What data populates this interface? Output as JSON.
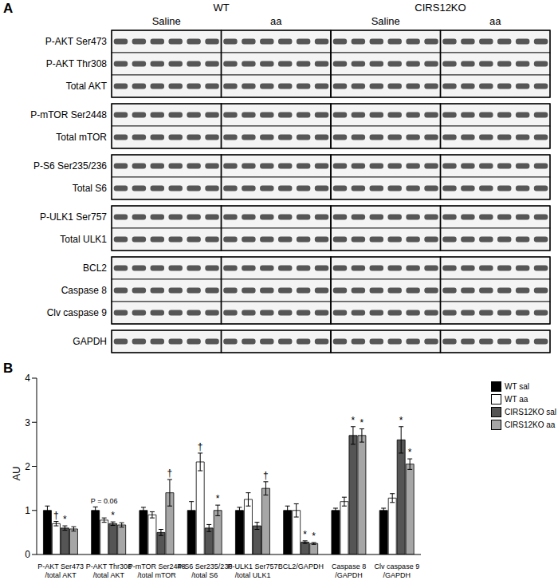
{
  "panel_a": {
    "label": "A",
    "groups": [
      {
        "name": "WT",
        "conditions": [
          "Saline",
          "aa"
        ]
      },
      {
        "name": "CIRS12KO",
        "conditions": [
          "Saline",
          "aa"
        ]
      }
    ],
    "blocks": [
      [
        "P-AKT Ser473",
        "P-AKT Thr308",
        "Total AKT"
      ],
      [
        "P-mTOR Ser2448",
        "Total mTOR"
      ],
      [
        "P-S6 Ser235/236",
        "Total S6"
      ],
      [
        "P-ULK1 Ser757",
        "Total ULK1"
      ],
      [
        "BCL2",
        "Caspase 8",
        "Clv caspase 9"
      ],
      [
        "GAPDH"
      ]
    ],
    "lanes_per_condition": 6
  },
  "chart_data": {
    "type": "bar",
    "title": "B",
    "ylabel": "AU",
    "categories": [
      "P-AKT Ser473\n/total AKT",
      "P-AKT Thr308\n/total AKT",
      "P-mTOR Ser2448\n/total mTOR",
      "P-S6 Ser235/236\n/total S6",
      "P-ULK1 Ser757\n/total ULK1",
      "BCL2/GAPDH",
      "Caspase 8\n/GAPDH",
      "Clv caspase 9\n/GAPDH"
    ],
    "ylim": [
      0,
      4
    ],
    "yticks": [
      0,
      1,
      2,
      3,
      4
    ],
    "grid": false,
    "legend": "right",
    "series": [
      {
        "name": "WT sal",
        "color": "#000000",
        "values": [
          1,
          1,
          1,
          1,
          1,
          1,
          1,
          1
        ],
        "errors": [
          0.1,
          0.08,
          0.07,
          0.2,
          0.07,
          0.1,
          0.05,
          0.05
        ],
        "annotations": [
          null,
          null,
          null,
          null,
          null,
          null,
          null,
          null
        ]
      },
      {
        "name": "WT aa",
        "color": "#ffffff",
        "values": [
          0.7,
          0.78,
          0.9,
          2.1,
          1.25,
          1.0,
          1.2,
          1.28
        ],
        "errors": [
          0.05,
          0.05,
          0.07,
          0.2,
          0.15,
          0.15,
          0.1,
          0.1
        ],
        "annotations": [
          "†",
          "P = 0.06",
          null,
          "†",
          null,
          null,
          null,
          null
        ]
      },
      {
        "name": "CIRS12KO sal",
        "color": "#555555",
        "values": [
          0.6,
          0.7,
          0.5,
          0.6,
          0.65,
          0.28,
          2.7,
          2.6
        ],
        "errors": [
          0.05,
          0.04,
          0.07,
          0.08,
          0.08,
          0.03,
          0.2,
          0.3
        ],
        "annotations": [
          "*",
          "*",
          null,
          null,
          null,
          "*",
          "*",
          "*"
        ]
      },
      {
        "name": "CIRS12KO aa",
        "color": "#a6a6a6",
        "values": [
          0.58,
          0.67,
          1.4,
          1.0,
          1.5,
          0.25,
          2.7,
          2.05
        ],
        "errors": [
          0.05,
          0.05,
          0.3,
          0.12,
          0.15,
          0.02,
          0.15,
          0.12
        ],
        "annotations": [
          null,
          null,
          "†",
          "*",
          "†",
          "*",
          "*",
          "*"
        ]
      }
    ]
  }
}
